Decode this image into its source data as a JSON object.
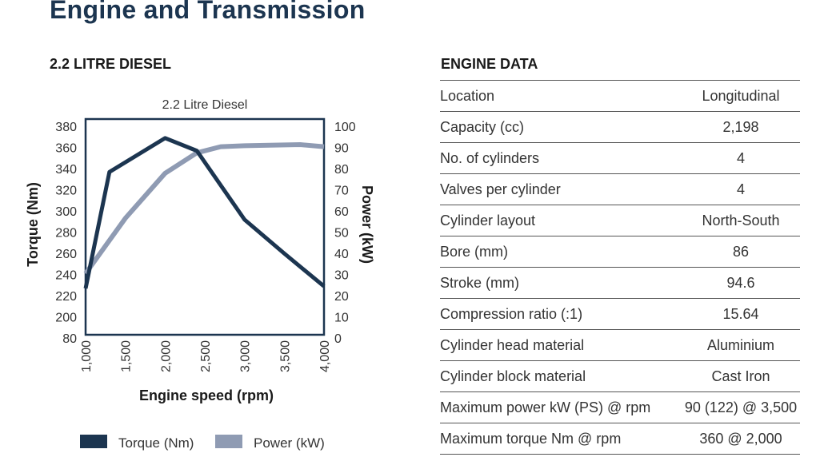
{
  "page": {
    "title": "Engine and Transmission"
  },
  "left": {
    "heading": "2.2 LITRE DIESEL"
  },
  "right": {
    "heading": "ENGINE DATA"
  },
  "engine_data": [
    {
      "label": "Location",
      "value": "Longitudinal"
    },
    {
      "label": "Capacity (cc)",
      "value": "2,198"
    },
    {
      "label": "No. of cylinders",
      "value": "4"
    },
    {
      "label": "Valves per cylinder",
      "value": "4"
    },
    {
      "label": "Cylinder layout",
      "value": "North-South"
    },
    {
      "label": "Bore (mm)",
      "value": "86"
    },
    {
      "label": "Stroke (mm)",
      "value": "94.6"
    },
    {
      "label": "Compression ratio (:1)",
      "value": "15.64"
    },
    {
      "label": "Cylinder head material",
      "value": "Aluminium"
    },
    {
      "label": "Cylinder block material",
      "value": "Cast Iron"
    },
    {
      "label": "Maximum power kW (PS) @ rpm",
      "value": "90 (122) @ 3,500"
    },
    {
      "label": "Maximum torque Nm @ rpm",
      "value": "360 @ 2,000"
    }
  ],
  "chart_data": {
    "type": "line",
    "title": "2.2 Litre Diesel",
    "xlabel": "Engine speed (rpm)",
    "ylabel": "Torque (Nm)",
    "y2label": "Power (kW)",
    "x_ticks": [
      "1,000",
      "1,500",
      "2,000",
      "2,500",
      "3,000",
      "3,500",
      "4,000"
    ],
    "xlim": [
      1000,
      4000
    ],
    "y_ticks": [
      "380",
      "360",
      "340",
      "320",
      "300",
      "280",
      "260",
      "240",
      "220",
      "200",
      "80"
    ],
    "y2_ticks": [
      "100",
      "90",
      "80",
      "70",
      "60",
      "50",
      "40",
      "30",
      "20",
      "10",
      "0"
    ],
    "y2lim": [
      0,
      100
    ],
    "legend_position": "bottom",
    "grid": false,
    "series": [
      {
        "name": "Torque (Nm)",
        "axis": "left",
        "color": "#1c3550",
        "x": [
          1000,
          1300,
          2000,
          2400,
          3000,
          3500,
          4000
        ],
        "y": [
          220,
          330,
          362,
          350,
          285,
          253,
          222
        ]
      },
      {
        "name": "Power (kW)",
        "axis": "right",
        "color": "#8f9bb3",
        "x": [
          1000,
          1500,
          2000,
          2400,
          2700,
          3000,
          3700,
          4000
        ],
        "y": [
          28,
          55,
          77,
          87,
          90,
          90.5,
          91,
          90
        ]
      }
    ]
  }
}
